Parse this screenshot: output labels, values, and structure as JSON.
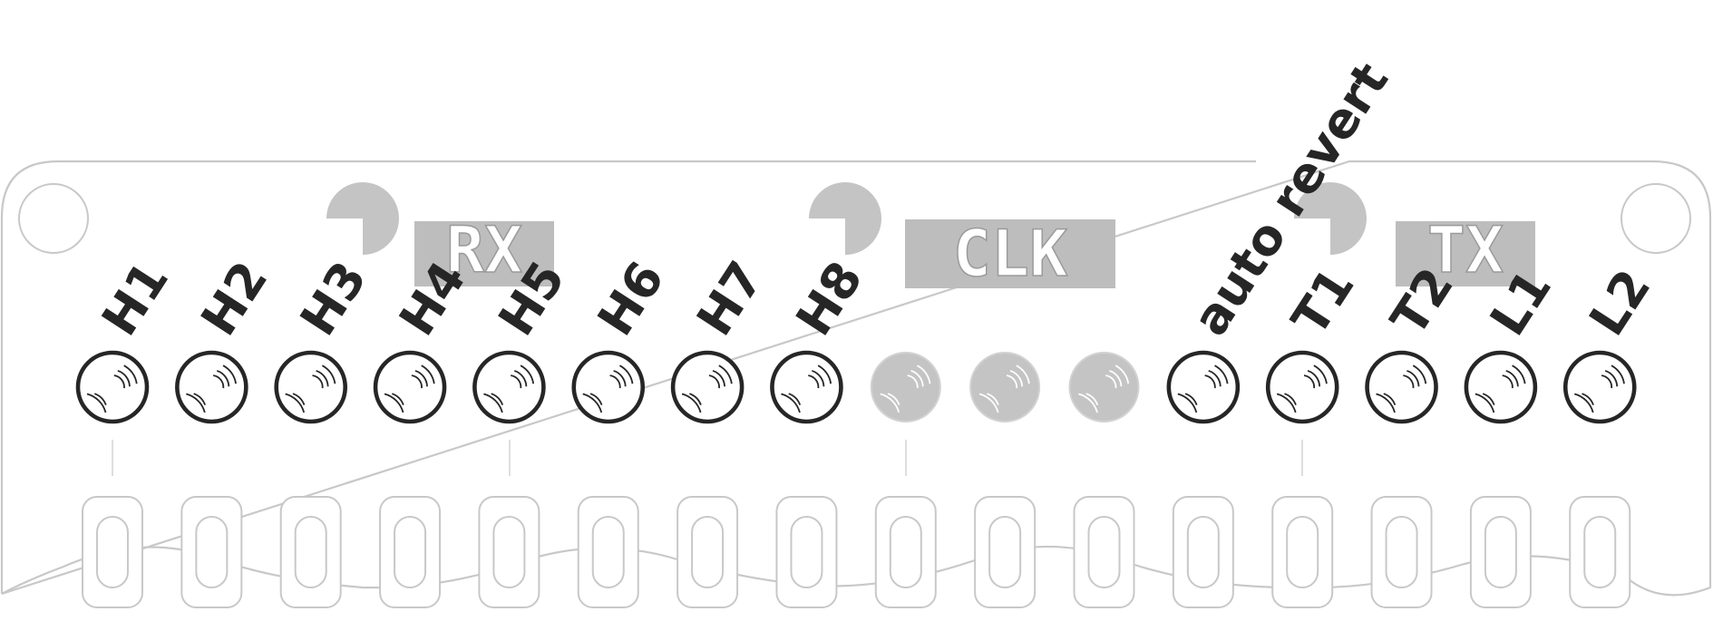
{
  "channel_labels": [
    {
      "id": "H1",
      "label": "H1",
      "state": "on"
    },
    {
      "id": "H2",
      "label": "H2",
      "state": "on"
    },
    {
      "id": "H3",
      "label": "H3",
      "state": "on"
    },
    {
      "id": "H4",
      "label": "H4",
      "state": "on"
    },
    {
      "id": "H5",
      "label": "H5",
      "state": "on"
    },
    {
      "id": "H6",
      "label": "H6",
      "state": "on"
    },
    {
      "id": "H7",
      "label": "H7",
      "state": "on"
    },
    {
      "id": "H8",
      "label": "H8",
      "state": "on"
    },
    {
      "id": "blank1",
      "label": "",
      "state": "off"
    },
    {
      "id": "blank2",
      "label": "",
      "state": "off"
    },
    {
      "id": "blank3",
      "label": "",
      "state": "off"
    },
    {
      "id": "auto-revert",
      "label": "auto revert",
      "state": "on"
    },
    {
      "id": "T1",
      "label": "T1",
      "state": "on"
    },
    {
      "id": "T2",
      "label": "T2",
      "state": "on"
    },
    {
      "id": "L1",
      "label": "L1",
      "state": "on"
    },
    {
      "id": "L2",
      "label": "L2",
      "state": "on"
    }
  ],
  "silkscreen": {
    "rx_label": "RX",
    "clk_label": "CLK",
    "tx_label": "TX"
  },
  "colors": {
    "led_on_ring": "#262626",
    "led_off_fill": "#c4c4c4",
    "outline": "#c8c8c8",
    "silkscreen_block": "#bdbdbd"
  },
  "pad_count": 16
}
